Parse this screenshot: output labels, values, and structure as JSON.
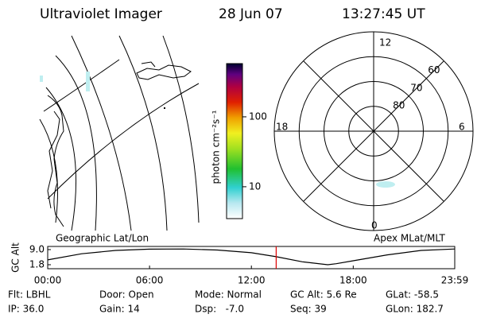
{
  "header": {
    "title": "Ultraviolet Imager",
    "date": "28 Jun 07",
    "time": "13:27:45 UT"
  },
  "colorbar": {
    "label": "photon cm⁻²s⁻¹",
    "lim": [
      3.5,
      577
    ],
    "ticks": [
      10,
      100
    ],
    "log": true
  },
  "polar": {
    "rlim": [
      90,
      50
    ],
    "lat_labels": [
      80,
      70,
      60
    ],
    "mlt_labels": {
      "top": "12",
      "left": "18",
      "right": "6",
      "bottom": "0"
    }
  },
  "map_labels": {
    "left": "Geographic Lat/Lon",
    "right": "Apex MLat/MLT"
  },
  "chart_data": {
    "type": "line",
    "ylabel": "GC Alt",
    "x": [
      0,
      2,
      4,
      6,
      8,
      10,
      12,
      13.46,
      15,
      16.5,
      17,
      18,
      20,
      22,
      23.98
    ],
    "series": [
      {
        "color": "#000000",
        "values": [
          4.1,
          7.0,
          8.6,
          9.2,
          9.3,
          8.8,
          7.5,
          5.6,
          3.2,
          1.8,
          2.3,
          3.7,
          6.5,
          8.6,
          9.3
        ]
      }
    ],
    "current_x": 13.46,
    "current_color": "#dd0000",
    "xlim": [
      0,
      23.98
    ],
    "xticks": [
      {
        "value": 0,
        "label": "00:00"
      },
      {
        "value": 6,
        "label": "06:00"
      },
      {
        "value": 12,
        "label": "12:00"
      },
      {
        "value": 18,
        "label": "18:00"
      },
      {
        "value": 23.98,
        "label": "23:59"
      }
    ],
    "ylim": [
      -0.1,
      10.5
    ],
    "yticks": [
      {
        "value": 9,
        "label": "9.0"
      },
      1.8
    ]
  },
  "footer": {
    "rows": [
      [
        "Flt: LBHL",
        "Door: Open",
        "Mode: Normal",
        "GC Alt: 5.6 Re",
        "GLat: -58.5"
      ],
      [
        "IP: 36.0",
        "Gain: 14",
        "Dsp:   -7.0",
        "Seq: 39",
        "GLon: 182.7"
      ]
    ]
  }
}
